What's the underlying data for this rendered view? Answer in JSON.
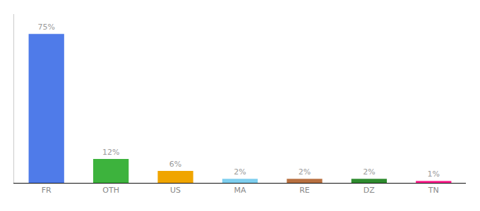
{
  "chart_data": {
    "type": "bar",
    "categories": [
      "FR",
      "OTH",
      "US",
      "MA",
      "RE",
      "DZ",
      "TN"
    ],
    "values": [
      75,
      12,
      6,
      2,
      2,
      2,
      1
    ],
    "value_labels": [
      "75%",
      "12%",
      "6%",
      "2%",
      "2%",
      "2%",
      "1%"
    ],
    "colors": [
      "#4f7be9",
      "#3db33d",
      "#f0a500",
      "#7ecfef",
      "#b87040",
      "#2e8b2e",
      "#ff1e8c"
    ],
    "ylim": [
      0,
      85
    ],
    "data_labels": true,
    "tick_labels": "x",
    "grid": false
  }
}
